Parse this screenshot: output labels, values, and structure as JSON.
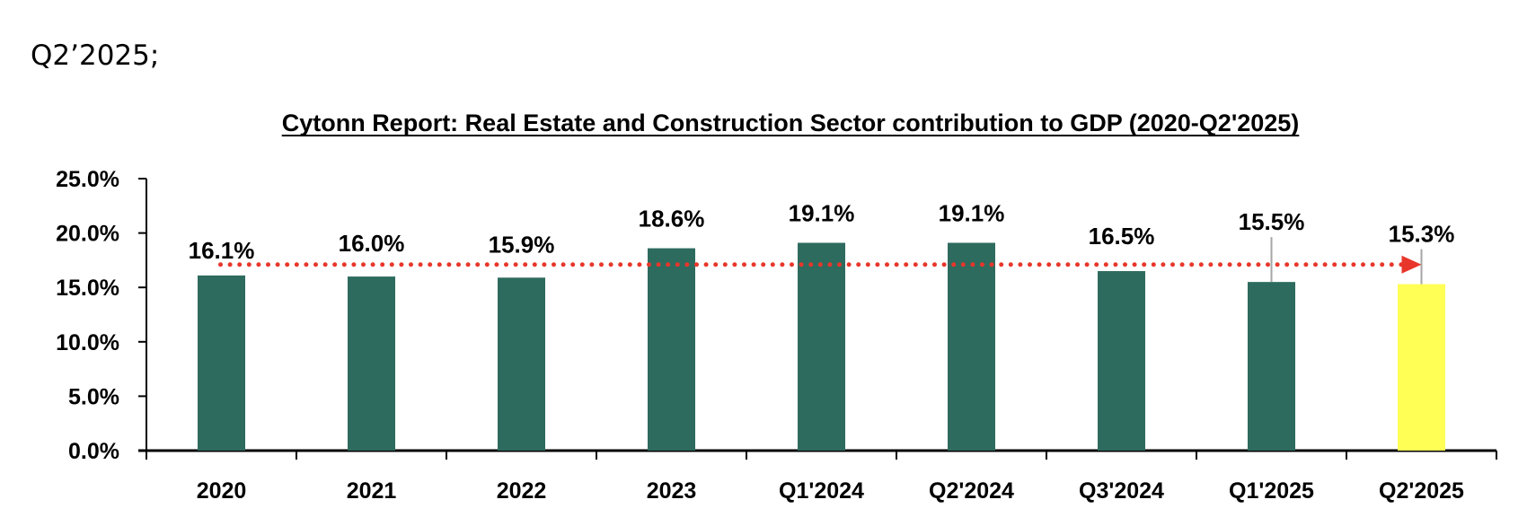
{
  "lead_text": "Q2’2025;",
  "chart_data": {
    "type": "bar",
    "title": "Cytonn Report: Real Estate and Construction Sector contribution to GDP (2020-Q2'2025)",
    "xlabel": "",
    "ylabel": "",
    "ylim": [
      0,
      25
    ],
    "yticks": [
      0,
      5,
      10,
      15,
      20,
      25
    ],
    "ytick_labels": [
      "0.0%",
      "5.0%",
      "10.0%",
      "15.0%",
      "20.0%",
      "25.0%"
    ],
    "categories": [
      "2020",
      "2021",
      "2022",
      "2023",
      "Q1'2024",
      "Q2'2024",
      "Q3'2024",
      "Q1'2025",
      "Q2'2025"
    ],
    "values": [
      16.1,
      16.0,
      15.9,
      18.6,
      19.1,
      19.1,
      16.5,
      15.5,
      15.3
    ],
    "data_labels": [
      "16.1%",
      "16.0%",
      "15.9%",
      "18.6%",
      "19.1%",
      "19.1%",
      "16.5%",
      "15.5%",
      "15.3%"
    ],
    "highlight_index": 8,
    "colors": {
      "bar": "#2e6b5f",
      "highlight": "#ffff55",
      "trend": "#e8362a",
      "leader": "#a6a6a6",
      "axis": "#000000"
    },
    "trend_line": {
      "style": "dotted-arrow",
      "level": 17.1,
      "from_category": "2020",
      "to_category": "Q2'2025"
    },
    "grid": false,
    "legend": "none"
  }
}
